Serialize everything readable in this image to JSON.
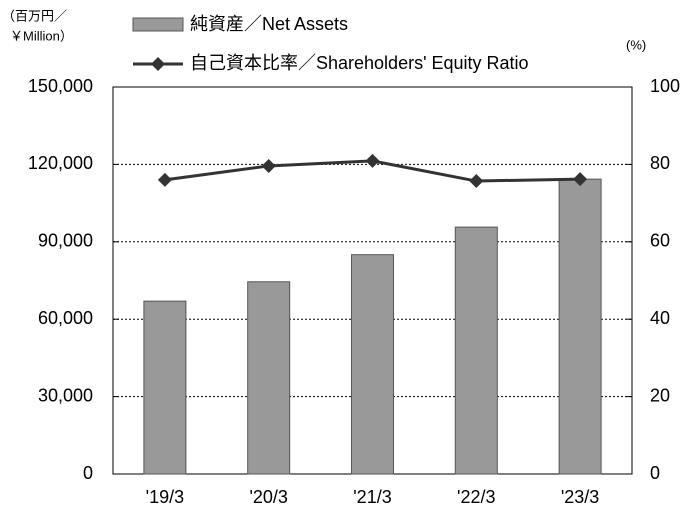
{
  "chart_data": {
    "type": "bar_line",
    "y_label": [
      "（百万円／",
      "￥Million）"
    ],
    "y2_label": "(%)",
    "categories": [
      "'19/3",
      "'20/3",
      "'21/3",
      "'22/3",
      "'23/3"
    ],
    "series": [
      {
        "name": "純資産／Net Assets",
        "type": "bar",
        "color": "#999999",
        "values": [
          67000,
          74500,
          85000,
          95700,
          114300
        ]
      },
      {
        "name": "自己資本比率／Shareholders' Equity Ratio",
        "type": "line",
        "axis": "y2",
        "color": "#333333",
        "values": [
          76.0,
          79.6,
          80.9,
          75.7,
          76.2
        ]
      }
    ],
    "ylim": [
      0,
      150000
    ],
    "yticks": [
      0,
      {
        "value": 30000,
        "label": "30,000"
      },
      {
        "value": 60000,
        "label": "60,000"
      },
      {
        "value": 90000,
        "label": "90,000"
      },
      {
        "value": 120000,
        "label": "120,000"
      },
      {
        "value": 150000,
        "label": "150,000"
      }
    ],
    "y2lim": [
      0,
      100
    ],
    "y2ticks": [
      0,
      20,
      40,
      60,
      80,
      100
    ],
    "grid": true
  }
}
